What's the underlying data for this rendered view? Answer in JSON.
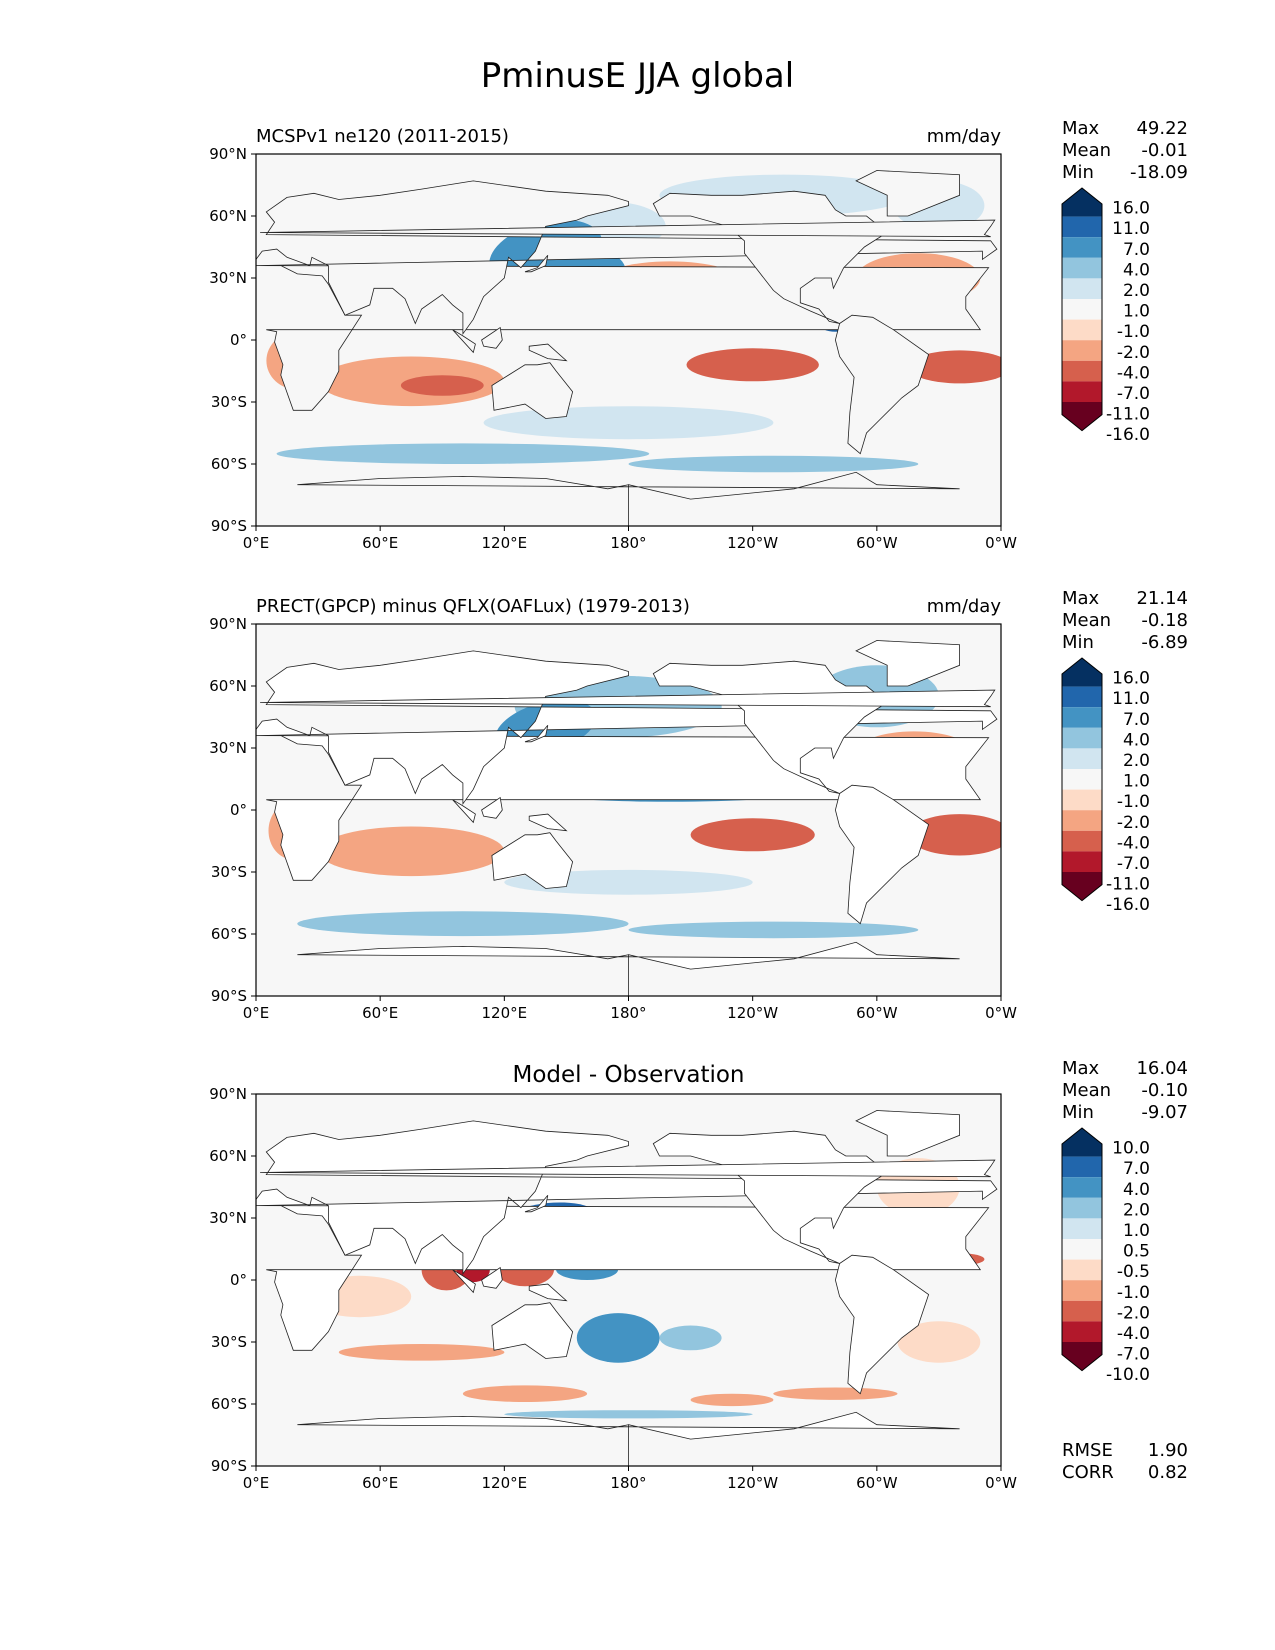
{
  "title": "PminusE JJA global",
  "x_ticks": [
    "0°E",
    "60°E",
    "120°E",
    "180°",
    "120°W",
    "60°W",
    "0°W"
  ],
  "y_ticks": [
    "90°N",
    "60°N",
    "30°N",
    "0°",
    "30°S",
    "60°S",
    "90°S"
  ],
  "panels": [
    {
      "title_left": "MCSPv1 ne120 (2011-2015)",
      "title_center": "",
      "units": "mm/day",
      "stats": [
        {
          "label": "Max",
          "value": "49.22"
        },
        {
          "label": "Mean",
          "value": "-0.01"
        },
        {
          "label": "Min",
          "value": "-18.09"
        }
      ],
      "colorbar": {
        "levels": [
          "16.0",
          "11.0",
          "7.0",
          "4.0",
          "2.0",
          "1.0",
          "-1.0",
          "-2.0",
          "-4.0",
          "-7.0",
          "-11.0",
          "-16.0"
        ],
        "colors": [
          "#053061",
          "#2166ac",
          "#4393c3",
          "#92c5de",
          "#d1e5f0",
          "#f7f7f7",
          "#fddbc7",
          "#f4a582",
          "#d6604d",
          "#b2182b",
          "#67001f"
        ]
      },
      "extra_stats": []
    },
    {
      "title_left": "PRECT(GPCP) minus QFLX(OAFLux) (1979-2013)",
      "title_center": "",
      "units": "mm/day",
      "stats": [
        {
          "label": "Max",
          "value": "21.14"
        },
        {
          "label": "Mean",
          "value": "-0.18"
        },
        {
          "label": "Min",
          "value": "-6.89"
        }
      ],
      "colorbar": {
        "levels": [
          "16.0",
          "11.0",
          "7.0",
          "4.0",
          "2.0",
          "1.0",
          "-1.0",
          "-2.0",
          "-4.0",
          "-7.0",
          "-11.0",
          "-16.0"
        ],
        "colors": [
          "#053061",
          "#2166ac",
          "#4393c3",
          "#92c5de",
          "#d1e5f0",
          "#f7f7f7",
          "#fddbc7",
          "#f4a582",
          "#d6604d",
          "#b2182b",
          "#67001f"
        ]
      },
      "extra_stats": []
    },
    {
      "title_left": "",
      "title_center": "Model - Observation",
      "units": "",
      "stats": [
        {
          "label": "Max",
          "value": "16.04"
        },
        {
          "label": "Mean",
          "value": "-0.10"
        },
        {
          "label": "Min",
          "value": "-9.07"
        }
      ],
      "colorbar": {
        "levels": [
          "10.0",
          "7.0",
          "4.0",
          "2.0",
          "1.0",
          "0.5",
          "-0.5",
          "-1.0",
          "-2.0",
          "-4.0",
          "-7.0",
          "-10.0"
        ],
        "colors": [
          "#053061",
          "#2166ac",
          "#4393c3",
          "#92c5de",
          "#d1e5f0",
          "#f7f7f7",
          "#fddbc7",
          "#f4a582",
          "#d6604d",
          "#b2182b",
          "#67001f"
        ]
      },
      "extra_stats": [
        {
          "label": "RMSE",
          "value": "1.90"
        },
        {
          "label": "CORR",
          "value": "0.82"
        }
      ]
    }
  ]
}
